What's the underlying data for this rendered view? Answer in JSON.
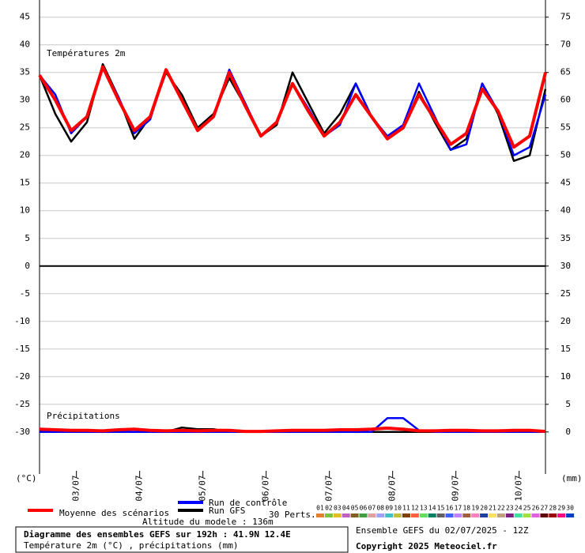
{
  "chart_data": {
    "type": "line",
    "title": "Diagramme des ensembles GEFS sur 192h : 41.9N 12.4E",
    "subtitle": "Température 2m (°C) , précipitations (mm)",
    "run_info": "Ensemble GEFS du 02/07/2025 - 12Z",
    "copyright": "Copyright 2025 Meteociel.fr",
    "altitude": "Altitude du modele : 136m",
    "temp_label": "Températures 2m",
    "precip_label": "Précipitations",
    "y_label": "(°C)",
    "y2_label": "(mm)",
    "perts_label": "30 Perts.",
    "x": [
      0,
      6,
      12,
      18,
      24,
      30,
      36,
      42,
      48,
      54,
      60,
      66,
      72,
      78,
      84,
      90,
      96,
      102,
      108,
      114,
      120,
      126,
      132,
      138,
      144,
      150,
      156,
      162,
      168,
      174,
      180,
      186,
      192
    ],
    "xlim": [
      0,
      192
    ],
    "xticks": [
      {
        "value": 14,
        "label": "03/07"
      },
      {
        "value": 38,
        "label": "04/07"
      },
      {
        "value": 62,
        "label": "05/07"
      },
      {
        "value": 86,
        "label": "06/07"
      },
      {
        "value": 110,
        "label": "07/07"
      },
      {
        "value": 134,
        "label": "08/07"
      },
      {
        "value": 158,
        "label": "09/07"
      },
      {
        "value": 182,
        "label": "10/07"
      }
    ],
    "ylim": [
      -37.6,
      48.1
    ],
    "yticks": [
      -30,
      -25,
      -20,
      -15,
      -10,
      -5,
      0,
      5,
      10,
      15,
      20,
      25,
      30,
      35,
      40,
      45
    ],
    "y2lim": [
      -7.6,
      78.1
    ],
    "y2ticks": [
      0,
      5,
      10,
      15,
      20,
      25,
      30,
      35,
      40,
      45,
      50,
      55,
      60,
      65,
      70,
      75
    ],
    "grid": true,
    "series": [
      {
        "name": "Moyenne des scénarios",
        "color": "#ff0000",
        "values": [
          34.5,
          30,
          24.5,
          27,
          36,
          30,
          24.5,
          27,
          35.5,
          30,
          24.5,
          27,
          35,
          29,
          23.5,
          26,
          33,
          28,
          23.5,
          26,
          31,
          27,
          23,
          25,
          31,
          26.5,
          22,
          24,
          32,
          28,
          21.5,
          23.5,
          35
        ],
        "precip": [
          0.5,
          0.4,
          0.3,
          0.3,
          0.2,
          0.4,
          0.5,
          0.3,
          0.2,
          0.3,
          0.2,
          0.3,
          0.3,
          0.1,
          0.1,
          0.2,
          0.3,
          0.3,
          0.3,
          0.4,
          0.4,
          0.5,
          0.7,
          0.5,
          0.2,
          0.2,
          0.3,
          0.3,
          0.2,
          0.2,
          0.3,
          0.3,
          0.1
        ]
      },
      {
        "name": "Run de contrôle",
        "color": "#0000ff",
        "values": [
          34.5,
          31,
          24,
          27,
          36,
          30.5,
          24,
          26.5,
          35.5,
          30,
          24.5,
          27,
          35.5,
          29.5,
          23.5,
          26,
          33,
          28.5,
          23.5,
          25.5,
          33,
          27,
          23.5,
          25.5,
          33,
          27,
          21,
          22,
          33,
          28,
          20,
          21.5,
          31
        ],
        "precip": [
          0,
          0,
          0,
          0,
          0,
          0,
          0,
          0,
          0,
          0,
          0,
          0,
          0,
          0,
          0,
          0,
          0,
          0,
          0,
          0,
          0,
          0,
          2.5,
          2.5,
          0.3,
          0,
          0,
          0,
          0,
          0,
          0,
          0,
          0
        ]
      },
      {
        "name": "Run GFS",
        "color": "#000000",
        "values": [
          34.5,
          27.5,
          22.5,
          26,
          36.5,
          30.5,
          23,
          27,
          35,
          31,
          25,
          27.5,
          34,
          29,
          23.5,
          25.5,
          35,
          29.5,
          24,
          27.5,
          33,
          27,
          23,
          25,
          31.5,
          26,
          21,
          23,
          33,
          27.5,
          19,
          20,
          32
        ],
        "precip": [
          0.3,
          0,
          0,
          0,
          0,
          0,
          0,
          0,
          0,
          0.8,
          0.5,
          0.5,
          0,
          0,
          0,
          0,
          0,
          0,
          0,
          0,
          0,
          0,
          0,
          0,
          0,
          0,
          0,
          0,
          0,
          0,
          0.3,
          0,
          0
        ]
      }
    ],
    "perturbations": [
      {
        "name": "01",
        "color": "#e08030"
      },
      {
        "name": "02",
        "color": "#80c040"
      },
      {
        "name": "03",
        "color": "#e0c020"
      },
      {
        "name": "04",
        "color": "#c060c0"
      },
      {
        "name": "05",
        "color": "#806020"
      },
      {
        "name": "06",
        "color": "#40a040"
      },
      {
        "name": "07",
        "color": "#e0a0a0"
      },
      {
        "name": "08",
        "color": "#a0a0ff"
      },
      {
        "name": "09",
        "color": "#40c0c0"
      },
      {
        "name": "10",
        "color": "#c0c040"
      },
      {
        "name": "11",
        "color": "#804000"
      },
      {
        "name": "12",
        "color": "#ff6040"
      },
      {
        "name": "13",
        "color": "#60e060"
      },
      {
        "name": "14",
        "color": "#008060"
      },
      {
        "name": "15",
        "color": "#606060"
      },
      {
        "name": "16",
        "color": "#4060ff"
      },
      {
        "name": "17",
        "color": "#c080ff"
      },
      {
        "name": "18",
        "color": "#a06040"
      },
      {
        "name": "19",
        "color": "#ff80c0"
      },
      {
        "name": "20",
        "color": "#2040a0"
      },
      {
        "name": "21",
        "color": "#ffe060"
      },
      {
        "name": "22",
        "color": "#c0a080"
      },
      {
        "name": "23",
        "color": "#802080"
      },
      {
        "name": "24",
        "color": "#40e0a0"
      },
      {
        "name": "25",
        "color": "#a0e040"
      },
      {
        "name": "26",
        "color": "#e060e0"
      },
      {
        "name": "27",
        "color": "#600000"
      },
      {
        "name": "28",
        "color": "#a00000"
      },
      {
        "name": "29",
        "color": "#ff0080"
      },
      {
        "name": "30",
        "color": "#0040c0"
      }
    ]
  }
}
